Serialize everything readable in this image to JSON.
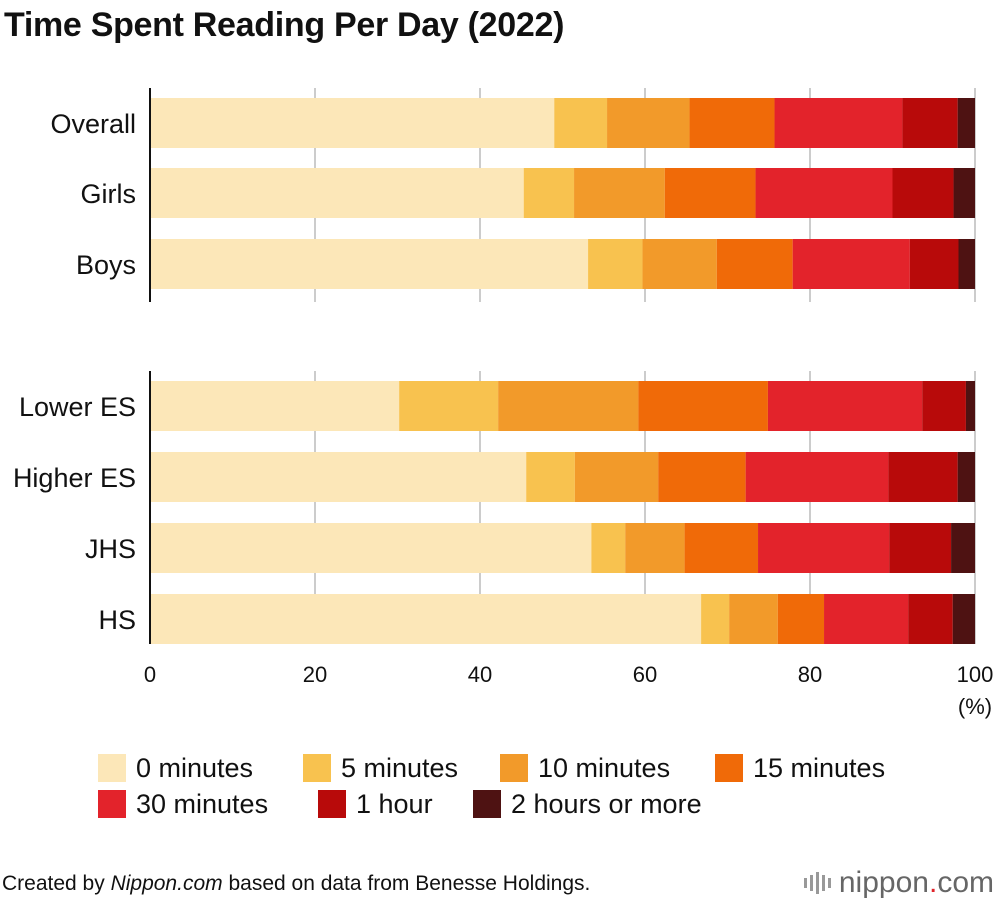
{
  "chart_data": {
    "type": "bar",
    "orientation": "horizontal",
    "stacked": true,
    "title": "Time Spent Reading Per Day (2022)",
    "xlabel": "",
    "x_unit_label": "(%)",
    "xlim": [
      0,
      100
    ],
    "x_ticks": [
      "0",
      "20",
      "40",
      "60",
      "80",
      "100"
    ],
    "grid": true,
    "legend_position": "bottom",
    "groups": [
      {
        "categories": [
          "Overall",
          "Girls",
          "Boys"
        ]
      },
      {
        "categories": [
          "Lower ES",
          "Higher ES",
          "JHS",
          "HS"
        ]
      }
    ],
    "categories": [
      "Overall",
      "Girls",
      "Boys",
      "Lower ES",
      "Higher ES",
      "JHS",
      "HS"
    ],
    "series": [
      {
        "name": "0 minutes",
        "color": "#fce7b8",
        "values": [
          49.0,
          45.3,
          53.1,
          30.2,
          45.6,
          53.5,
          66.8
        ]
      },
      {
        "name": "5 minutes",
        "color": "#f8c24f",
        "values": [
          6.4,
          6.1,
          6.6,
          12.0,
          5.9,
          4.1,
          3.4
        ]
      },
      {
        "name": "10 minutes",
        "color": "#f29a2a",
        "values": [
          10.0,
          11.0,
          9.0,
          17.0,
          10.1,
          7.2,
          5.9
        ]
      },
      {
        "name": "15 minutes",
        "color": "#f06a08",
        "values": [
          10.3,
          11.0,
          9.2,
          15.7,
          10.6,
          8.9,
          5.6
        ]
      },
      {
        "name": "30 minutes",
        "color": "#e3232b",
        "values": [
          15.5,
          16.6,
          14.2,
          18.7,
          17.3,
          15.9,
          10.2
        ]
      },
      {
        "name": "1 hour",
        "color": "#b80a0a",
        "values": [
          6.7,
          7.4,
          5.9,
          5.3,
          8.4,
          7.5,
          5.4
        ]
      },
      {
        "name": "2 hours or more",
        "color": "#4e1212",
        "values": [
          2.1,
          2.6,
          2.0,
          1.1,
          2.1,
          2.9,
          2.7
        ]
      }
    ]
  },
  "legend": {
    "rows": [
      [
        "0 minutes",
        "5 minutes",
        "10 minutes",
        "15 minutes"
      ],
      [
        "30 minutes",
        "1 hour",
        "2 hours or more"
      ]
    ]
  },
  "footer": {
    "prefix": "Created by ",
    "source_site": "Nippon.com",
    "suffix": " based on data from Benesse Holdings.",
    "brand_name": "nippon",
    "brand_dot": ".",
    "brand_tld": "com"
  }
}
